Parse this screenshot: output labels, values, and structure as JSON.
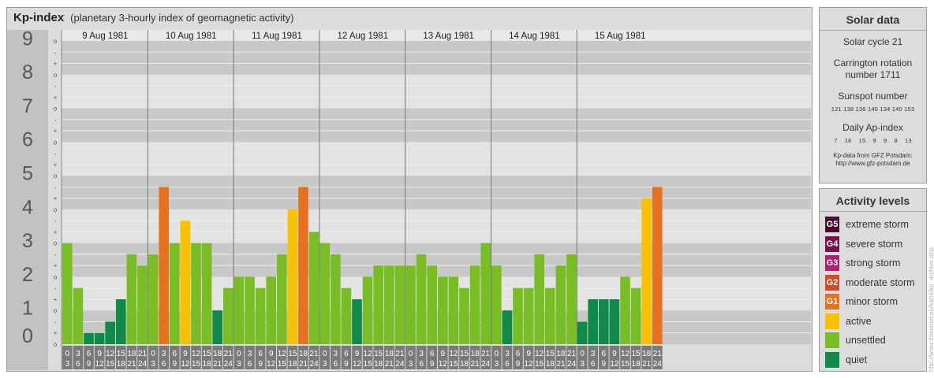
{
  "header": {
    "title": "Kp-index",
    "subtitle": "(planetary 3-hourly index of geomagnetic activity)"
  },
  "chart_data": {
    "type": "bar",
    "title": "Kp-index",
    "subtitle": "(planetary 3-hourly index of geomagnetic activity)",
    "ylim": [
      0,
      9
    ],
    "y_ticks": [
      "0",
      "1",
      "2",
      "3",
      "4",
      "5",
      "6",
      "7",
      "8",
      "9"
    ],
    "minor_tick_marks": [
      "-",
      "+",
      "o"
    ],
    "days": [
      "9 Aug 1981",
      "10 Aug 1981",
      "11 Aug 1981",
      "12 Aug 1981",
      "13 Aug 1981",
      "14 Aug 1981",
      "15 Aug 1981"
    ],
    "interval_labels": [
      [
        "0",
        "3"
      ],
      [
        "3",
        "6"
      ],
      [
        "6",
        "9"
      ],
      [
        "9",
        "12"
      ],
      [
        "12",
        "15"
      ],
      [
        "15",
        "18"
      ],
      [
        "18",
        "21"
      ],
      [
        "21",
        "24"
      ]
    ],
    "values": [
      3,
      1.667,
      0.333,
      0.333,
      0.667,
      1.333,
      2.667,
      2.333,
      2.667,
      4.667,
      3,
      3.667,
      3,
      3,
      1,
      1.667,
      2,
      2,
      1.667,
      2,
      2.667,
      4,
      4.667,
      3.333,
      3,
      2.667,
      1.667,
      1.333,
      2,
      2.333,
      2.333,
      2.333,
      2.333,
      2.667,
      2.333,
      2,
      2,
      1.667,
      2.333,
      3,
      2.333,
      1,
      1.667,
      1.667,
      2.667,
      1.667,
      2.333,
      2.667,
      0.667,
      1.333,
      1.333,
      1.333,
      2,
      1.667,
      4.333,
      4.667
    ],
    "activity_class": [
      "unsettled",
      "unsettled",
      "quiet",
      "quiet",
      "quiet",
      "quiet",
      "unsettled",
      "unsettled",
      "unsettled",
      "minor storm",
      "unsettled",
      "active",
      "unsettled",
      "unsettled",
      "quiet",
      "unsettled",
      "unsettled",
      "unsettled",
      "unsettled",
      "unsettled",
      "unsettled",
      "active",
      "minor storm",
      "unsettled",
      "unsettled",
      "unsettled",
      "unsettled",
      "quiet",
      "unsettled",
      "unsettled",
      "unsettled",
      "unsettled",
      "unsettled",
      "unsettled",
      "unsettled",
      "unsettled",
      "unsettled",
      "unsettled",
      "unsettled",
      "unsettled",
      "unsettled",
      "quiet",
      "unsettled",
      "unsettled",
      "unsettled",
      "unsettled",
      "unsettled",
      "unsettled",
      "quiet",
      "quiet",
      "quiet",
      "quiet",
      "unsettled",
      "unsettled",
      "active",
      "minor storm"
    ],
    "grid": true
  },
  "solar": {
    "title": "Solar data",
    "cycle": "Solar cycle 21",
    "rotation_line1": "Carrington rotation",
    "rotation_line2": "number 1711",
    "sunspot_label": "Sunspot number",
    "sunspot_values": "121 138 136 140 134 140 153",
    "ap_label": "Daily Ap-index",
    "ap_values": "7    16    15    9    9    8    13",
    "source_line1": "Kp-data from GFZ Potsdam:",
    "source_line2": "http://www.gfz-potsdam.de"
  },
  "legend": {
    "title": "Activity levels",
    "items": [
      {
        "badge": "G5",
        "label": "extreme storm",
        "color": "#4a0d2e"
      },
      {
        "badge": "G4",
        "label": "severe storm",
        "color": "#7a1252"
      },
      {
        "badge": "G3",
        "label": "strong storm",
        "color": "#b31e6e"
      },
      {
        "badge": "G2",
        "label": "moderate storm",
        "color": "#d24a26"
      },
      {
        "badge": "G1",
        "label": "minor storm",
        "color": "#e4721e"
      },
      {
        "badge": "",
        "label": "active",
        "color": "#f7c200"
      },
      {
        "badge": "",
        "label": "unsettled",
        "color": "#79bd25"
      },
      {
        "badge": "",
        "label": "quiet",
        "color": "#0f8a48"
      }
    ]
  },
  "watermark": "http://www.theusner.eu/karte/kp_archive.php"
}
